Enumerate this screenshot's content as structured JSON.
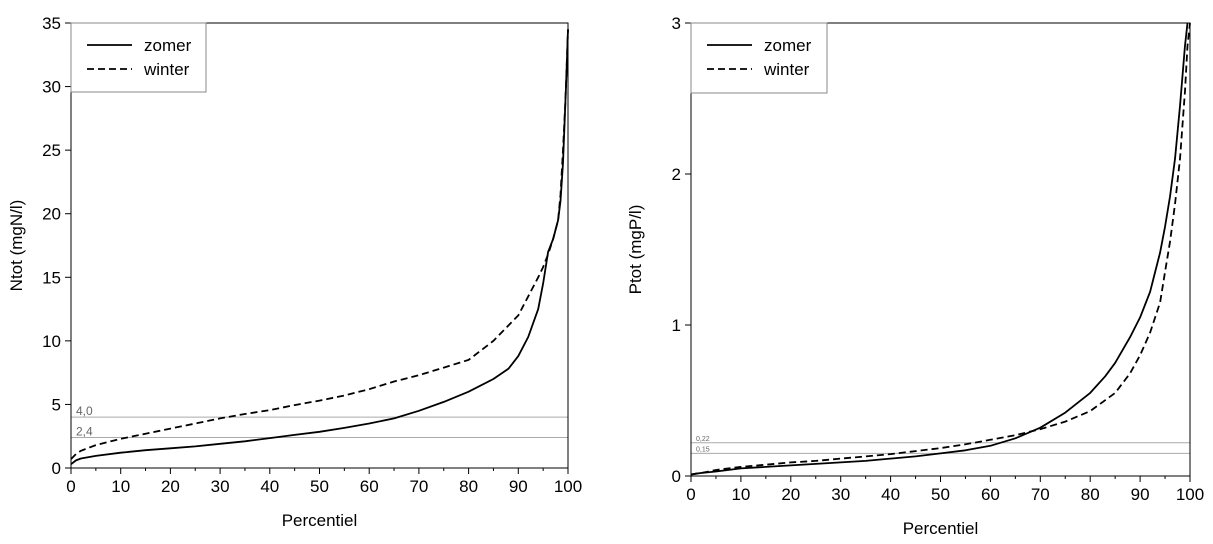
{
  "chart_data": [
    {
      "type": "line",
      "xlabel": "Percentiel",
      "ylabel": "Ntot (mgN/l)",
      "xlim": [
        0,
        100
      ],
      "ylim": [
        0,
        35
      ],
      "xticks": [
        "0",
        "10",
        "20",
        "30",
        "40",
        "50",
        "60",
        "70",
        "80",
        "90",
        "100"
      ],
      "yticks": [
        "0",
        "5",
        "10",
        "15",
        "20",
        "25",
        "30",
        "35"
      ],
      "legend": {
        "placement": "top-left"
      },
      "grid": false,
      "reference_lines": [
        {
          "value": 4.0,
          "label": "4,0"
        },
        {
          "value": 2.4,
          "label": "2,4"
        }
      ],
      "series": [
        {
          "name": "zomer",
          "style": "solid",
          "x": [
            0,
            1,
            2,
            5,
            10,
            15,
            20,
            25,
            30,
            35,
            40,
            45,
            50,
            55,
            60,
            65,
            70,
            75,
            80,
            85,
            88,
            90,
            92,
            94,
            95,
            96,
            97,
            98,
            98.5,
            99,
            99.3,
            99.6,
            100
          ],
          "y": [
            0.3,
            0.6,
            0.75,
            0.95,
            1.2,
            1.4,
            1.55,
            1.7,
            1.9,
            2.1,
            2.35,
            2.6,
            2.85,
            3.15,
            3.5,
            3.9,
            4.5,
            5.2,
            6.0,
            7.0,
            7.8,
            8.8,
            10.3,
            12.5,
            14.5,
            17.0,
            18.0,
            19.5,
            21.0,
            24.0,
            27.0,
            30.0,
            34.5
          ]
        },
        {
          "name": "winter",
          "style": "dashed",
          "x": [
            0,
            1,
            2,
            5,
            10,
            15,
            20,
            25,
            30,
            35,
            40,
            45,
            50,
            55,
            60,
            65,
            70,
            75,
            80,
            85,
            90,
            92,
            94,
            95,
            96,
            97,
            98,
            98.5,
            99,
            99.5,
            100
          ],
          "y": [
            0.7,
            1.1,
            1.35,
            1.8,
            2.3,
            2.7,
            3.1,
            3.5,
            3.9,
            4.25,
            4.55,
            4.95,
            5.3,
            5.7,
            6.2,
            6.8,
            7.3,
            7.9,
            8.5,
            10.0,
            12.0,
            13.5,
            15.0,
            15.8,
            16.8,
            18.0,
            19.5,
            21.5,
            25.0,
            29.0,
            34.5
          ]
        }
      ]
    },
    {
      "type": "line",
      "xlabel": "Percentiel",
      "ylabel": "Ptot (mgP/l)",
      "xlim": [
        0,
        100
      ],
      "ylim": [
        0,
        3
      ],
      "xticks": [
        "0",
        "10",
        "20",
        "30",
        "40",
        "50",
        "60",
        "70",
        "80",
        "90",
        "100"
      ],
      "yticks": [
        "0",
        "1",
        "2",
        "3"
      ],
      "legend": {
        "placement": "top-left"
      },
      "grid": false,
      "reference_lines": [
        {
          "value": 0.22,
          "label": "0,22"
        },
        {
          "value": 0.15,
          "label": "0,15"
        }
      ],
      "series": [
        {
          "name": "zomer",
          "style": "solid",
          "x": [
            0,
            1,
            2,
            5,
            10,
            15,
            20,
            25,
            30,
            35,
            40,
            45,
            50,
            55,
            60,
            65,
            70,
            75,
            80,
            83,
            85,
            88,
            90,
            92,
            93,
            94,
            95,
            96,
            97,
            98,
            99,
            99.5
          ],
          "y": [
            0.01,
            0.015,
            0.02,
            0.03,
            0.05,
            0.06,
            0.07,
            0.08,
            0.09,
            0.1,
            0.115,
            0.13,
            0.15,
            0.17,
            0.2,
            0.25,
            0.32,
            0.42,
            0.55,
            0.66,
            0.75,
            0.92,
            1.05,
            1.22,
            1.35,
            1.48,
            1.65,
            1.85,
            2.1,
            2.45,
            2.85,
            3.0
          ]
        },
        {
          "name": "winter",
          "style": "dashed",
          "x": [
            0,
            1,
            2,
            5,
            10,
            15,
            20,
            25,
            30,
            35,
            40,
            45,
            50,
            55,
            60,
            65,
            70,
            75,
            80,
            85,
            88,
            90,
            92,
            94,
            95,
            96,
            97,
            98,
            99,
            99.5,
            100
          ],
          "y": [
            0.01,
            0.015,
            0.02,
            0.04,
            0.06,
            0.075,
            0.09,
            0.1,
            0.115,
            0.13,
            0.145,
            0.165,
            0.185,
            0.21,
            0.24,
            0.27,
            0.31,
            0.36,
            0.43,
            0.55,
            0.68,
            0.8,
            0.95,
            1.15,
            1.35,
            1.55,
            1.8,
            2.1,
            2.55,
            2.85,
            3.0
          ]
        }
      ]
    }
  ],
  "colors": {
    "line": "#000000",
    "reference": "#aaaaaa",
    "axis": "#000000"
  }
}
